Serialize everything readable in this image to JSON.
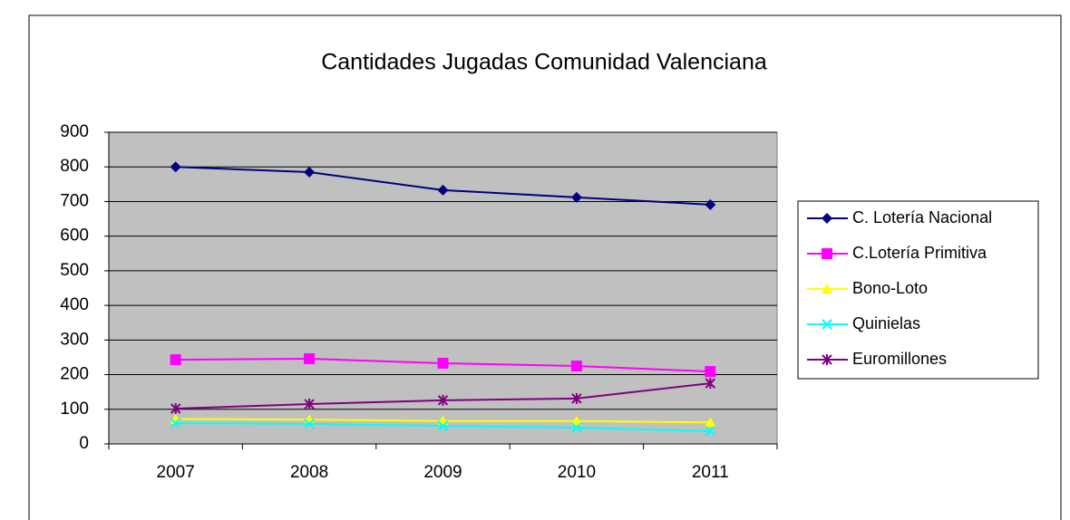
{
  "chart_data": {
    "type": "line",
    "title": "Cantidades Jugadas Comunidad Valenciana",
    "categories": [
      "2007",
      "2008",
      "2009",
      "2010",
      "2011"
    ],
    "series": [
      {
        "name": "C. Lotería Nacional",
        "color": "#000080",
        "marker": "diamond",
        "values": [
          800,
          785,
          733,
          712,
          691
        ]
      },
      {
        "name": "C.Lotería Primitiva",
        "color": "#ff00ff",
        "marker": "square",
        "values": [
          243,
          246,
          233,
          225,
          209
        ]
      },
      {
        "name": "Bono-Loto",
        "color": "#ffff00",
        "marker": "triangle",
        "values": [
          72,
          70,
          66,
          66,
          62
        ]
      },
      {
        "name": "Quinielas",
        "color": "#00ffff",
        "marker": "x",
        "values": [
          60,
          58,
          52,
          47,
          37
        ]
      },
      {
        "name": "Euromillones",
        "color": "#800080",
        "marker": "star",
        "values": [
          102,
          115,
          126,
          131,
          175
        ]
      }
    ],
    "ylim": [
      0,
      900
    ],
    "yticks": [
      0,
      100,
      200,
      300,
      400,
      500,
      600,
      700,
      800,
      900
    ],
    "grid": true,
    "legend": "right",
    "plot_background": "#c0c0c0"
  }
}
